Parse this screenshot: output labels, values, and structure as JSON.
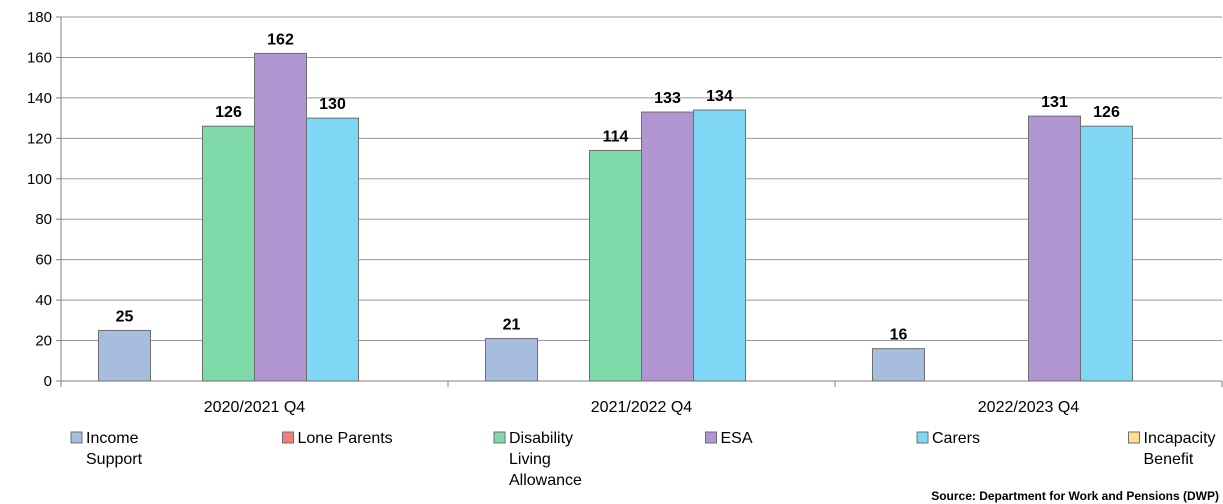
{
  "chart_data": {
    "type": "bar",
    "categories": [
      "2020/2021 Q4",
      "2021/2022 Q4",
      "2022/2023 Q4"
    ],
    "series": [
      {
        "name": "Income Support",
        "legend_lines": [
          "Income",
          "Support"
        ],
        "color": "#a7bddd",
        "values": [
          25,
          21,
          16
        ]
      },
      {
        "name": "Lone Parents",
        "legend_lines": [
          "Lone Parents"
        ],
        "color": "#f47c7c",
        "values": [
          null,
          null,
          null
        ]
      },
      {
        "name": "Disability Living Allowance",
        "legend_lines": [
          "Disability",
          "Living",
          "Allowance"
        ],
        "color": "#80d9a8",
        "values": [
          126,
          114,
          null
        ]
      },
      {
        "name": "ESA",
        "legend_lines": [
          "ESA"
        ],
        "color": "#b195d0",
        "values": [
          162,
          133,
          131
        ]
      },
      {
        "name": "Carers",
        "legend_lines": [
          "Carers"
        ],
        "color": "#7fd6f5",
        "values": [
          130,
          134,
          126
        ]
      },
      {
        "name": "Incapacity Benefit",
        "legend_lines": [
          "Incapacity",
          "Benefit"
        ],
        "color": "#fde088",
        "values": [
          null,
          null,
          null
        ]
      }
    ],
    "ylim": [
      0,
      180
    ],
    "yticks": [
      0,
      20,
      40,
      60,
      80,
      100,
      120,
      140,
      160,
      180
    ],
    "grid": true,
    "legend_position": "bottom"
  },
  "source": "Source: Department for Work and Pensions (DWP)"
}
